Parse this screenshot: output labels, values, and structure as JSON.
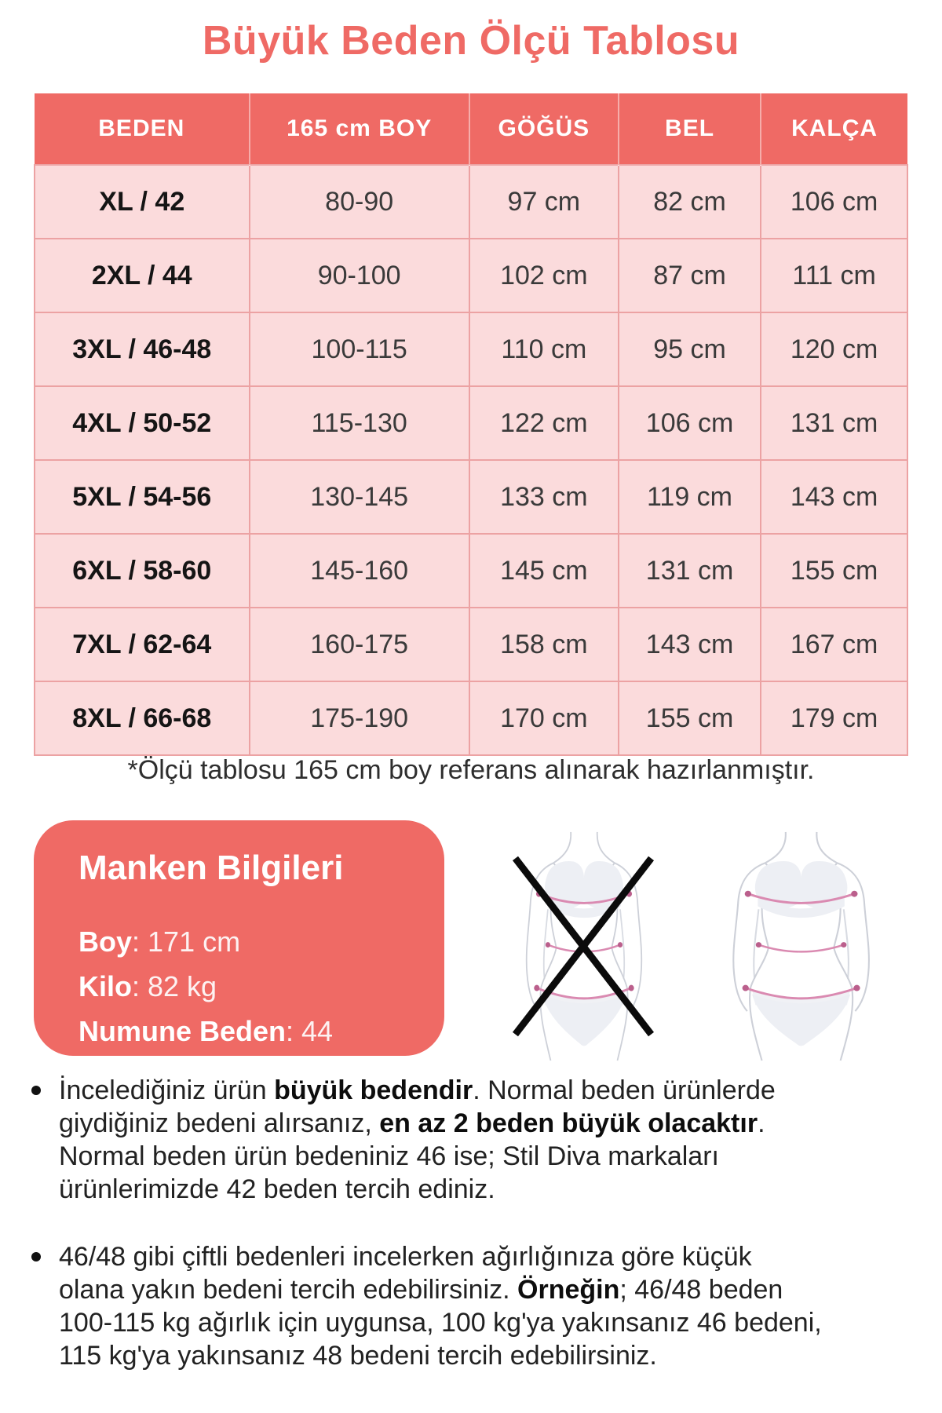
{
  "title": "Büyük Beden Ölçü Tablosu",
  "colors": {
    "accent": "#EF6A65",
    "row_pink": "#FBDBDC",
    "grid_line": "#ECA2A3",
    "measure_line": "#DA8AB1",
    "measure_dot": "#BB5F8C",
    "figure_line": "#CDD0D8",
    "figure_fill": "#EDEFF4",
    "x_mark": "#0B0B0B"
  },
  "table": {
    "columns": [
      "BEDEN",
      "165 cm BOY",
      "GÖĞÜS",
      "BEL",
      "KALÇA"
    ],
    "rows": [
      [
        "XL / 42",
        "80-90",
        "97 cm",
        "82 cm",
        "106 cm"
      ],
      [
        "2XL / 44",
        "90-100",
        "102 cm",
        "87 cm",
        "111 cm"
      ],
      [
        "3XL / 46-48",
        "100-115",
        "110 cm",
        "95 cm",
        "120 cm"
      ],
      [
        "4XL / 50-52",
        "115-130",
        "122 cm",
        "106 cm",
        "131 cm"
      ],
      [
        "5XL / 54-56",
        "130-145",
        "133 cm",
        "119 cm",
        "143 cm"
      ],
      [
        "6XL / 58-60",
        "145-160",
        "145 cm",
        "131 cm",
        "155 cm"
      ],
      [
        "7XL / 62-64",
        "160-175",
        "158 cm",
        "143 cm",
        "167 cm"
      ],
      [
        "8XL / 66-68",
        "175-190",
        "170 cm",
        "155 cm",
        "179 cm"
      ]
    ]
  },
  "note": "*Ölçü tablosu 165 cm boy referans alınarak hazırlanmıştır.",
  "model_info": {
    "title": "Manken Bilgileri",
    "fields": [
      {
        "label": "Boy",
        "value": ": 171 cm"
      },
      {
        "label": "Kilo",
        "value": ": 82 kg"
      },
      {
        "label": "Numune Beden",
        "value": ": 44"
      }
    ]
  },
  "figures": {
    "incorrect": "crossed-out-slim-figure-with-measurement-lines",
    "correct": "plus-size-figure-with-measurement-lines"
  },
  "bullets": [
    {
      "lines": [
        "İncelediğiniz ürün <b>büyük bedendir</b>. Normal beden ürünlerde",
        "giydiğiniz bedeni alırsanız, <b>en az 2 beden büyük olacaktır</b>.",
        "Normal beden ürün bedeniniz 46 ise; Stil Diva markaları",
        "ürünlerimizde 42 beden tercih ediniz."
      ]
    },
    {
      "lines": [
        "46/48 gibi çiftli bedenleri incelerken ağırlığınıza göre küçük",
        "olana yakın bedeni tercih edebilirsiniz. <b>Örneğin</b>; 46/48 beden",
        "100-115 kg ağırlık için uygunsa, 100 kg'ya yakınsanız 46 bedeni,",
        "115 kg'ya yakınsanız 48 bedeni tercih edebilirsiniz."
      ]
    }
  ]
}
